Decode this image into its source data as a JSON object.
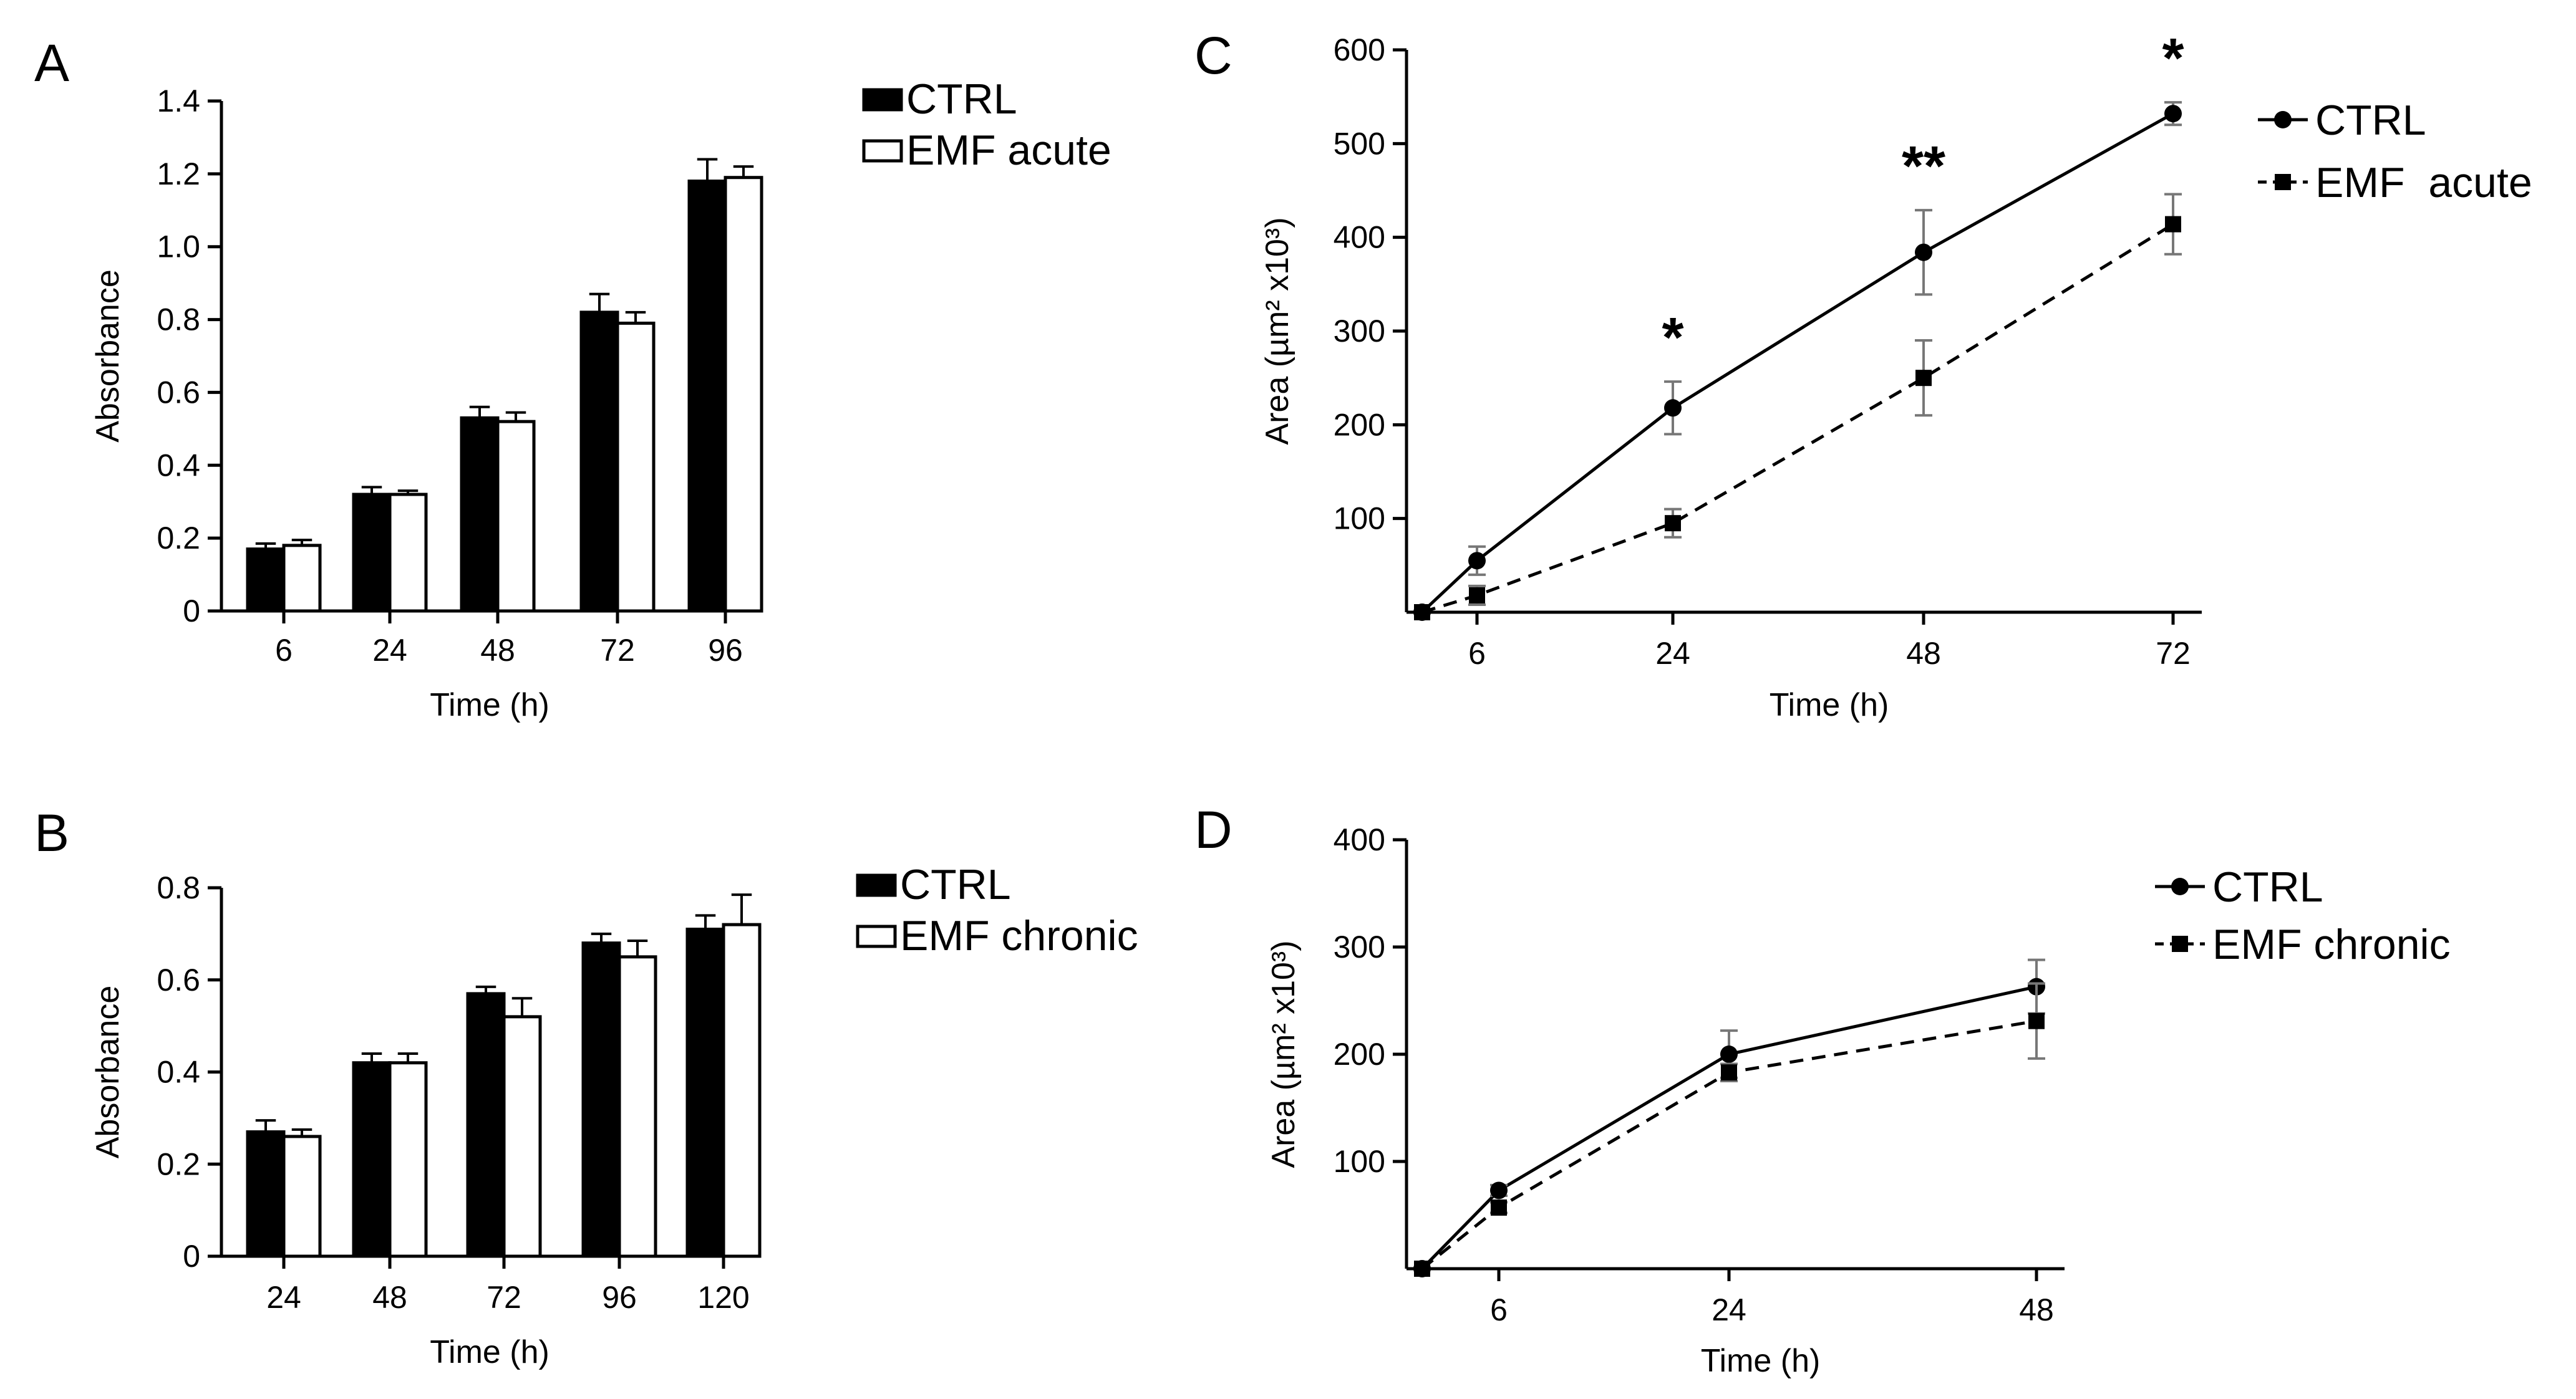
{
  "chart_data": [
    {
      "panel": "A",
      "type": "bar",
      "title": "",
      "xlabel": "Time (h)",
      "ylabel": "Absorbance",
      "ylim": [
        0,
        1.4
      ],
      "yticks": [
        "0",
        "0.2",
        "0.4",
        "0.6",
        "0.8",
        "1.0",
        "1.2",
        "1.4"
      ],
      "categories": [
        "6",
        "24",
        "48",
        "72",
        "96"
      ],
      "series": [
        {
          "name": "CTRL",
          "color": "#000000",
          "values": [
            0.17,
            0.32,
            0.53,
            0.82,
            1.18
          ],
          "errors": [
            0.015,
            0.02,
            0.03,
            0.05,
            0.06
          ]
        },
        {
          "name": "EMF acute",
          "color": "#ffffff",
          "values": [
            0.18,
            0.32,
            0.52,
            0.79,
            1.19
          ],
          "errors": [
            0.015,
            0.01,
            0.025,
            0.03,
            0.03
          ]
        }
      ]
    },
    {
      "panel": "B",
      "type": "bar",
      "title": "",
      "xlabel": "Time (h)",
      "ylabel": "Absorbance",
      "ylim": [
        0,
        0.8
      ],
      "yticks": [
        "0",
        "0.2",
        "0.4",
        "0.6",
        "0.8"
      ],
      "categories": [
        "24",
        "48",
        "72",
        "96",
        "120"
      ],
      "series": [
        {
          "name": "CTRL",
          "color": "#000000",
          "values": [
            0.27,
            0.42,
            0.57,
            0.68,
            0.71
          ],
          "errors": [
            0.025,
            0.02,
            0.015,
            0.02,
            0.03
          ]
        },
        {
          "name": "EMF chronic",
          "color": "#ffffff",
          "values": [
            0.26,
            0.42,
            0.52,
            0.65,
            0.72
          ],
          "errors": [
            0.015,
            0.02,
            0.04,
            0.035,
            0.065
          ]
        }
      ]
    },
    {
      "panel": "C",
      "type": "line",
      "title": "",
      "xlabel": "Time (h)",
      "ylabel": "Area (µm² x10³)",
      "ylim": [
        0,
        600
      ],
      "yticks": [
        "100",
        "200",
        "300",
        "400",
        "500",
        "600"
      ],
      "xticks": [
        "6",
        "24",
        "48",
        "72"
      ],
      "x": [
        0,
        6,
        24,
        48,
        72
      ],
      "series": [
        {
          "name": "CTRL",
          "marker": "circle",
          "dash": "solid",
          "values": [
            0,
            55,
            218,
            384,
            532
          ],
          "errors": [
            0,
            15,
            28,
            45,
            12
          ]
        },
        {
          "name": "EMF  acute",
          "marker": "square",
          "dash": "dashed",
          "values": [
            0,
            18,
            95,
            250,
            414
          ],
          "errors": [
            0,
            10,
            15,
            40,
            32
          ]
        }
      ],
      "annotations": [
        {
          "x": 24,
          "text": "*"
        },
        {
          "x": 48,
          "text": "**"
        },
        {
          "x": 72,
          "text": "*"
        }
      ]
    },
    {
      "panel": "D",
      "type": "line",
      "title": "",
      "xlabel": "Time (h)",
      "ylabel": "Area (µm² x10³)",
      "ylim": [
        0,
        400
      ],
      "yticks": [
        "100",
        "200",
        "300",
        "400"
      ],
      "xticks": [
        "6",
        "24",
        "48"
      ],
      "x": [
        0,
        6,
        24,
        48
      ],
      "series": [
        {
          "name": "CTRL",
          "marker": "circle",
          "dash": "solid",
          "values": [
            0,
            73,
            200,
            263
          ],
          "errors": [
            0,
            5,
            22,
            25
          ]
        },
        {
          "name": "EMF chronic",
          "marker": "square",
          "dash": "dashed",
          "values": [
            0,
            57,
            183,
            231
          ],
          "errors": [
            0,
            5,
            8,
            35
          ]
        }
      ],
      "annotations": []
    }
  ]
}
